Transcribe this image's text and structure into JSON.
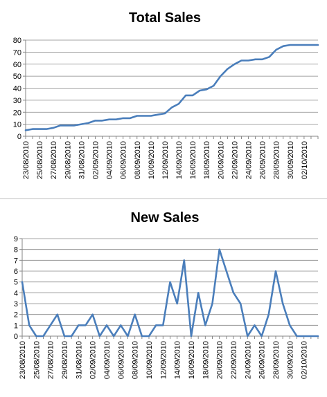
{
  "colors": {
    "line": "#4a7ebb",
    "axis": "#868686",
    "grid": "#868686"
  },
  "chart_data": [
    {
      "type": "line",
      "title": "Total Sales",
      "ylim": [
        0,
        80
      ],
      "yticks": [
        0,
        10,
        20,
        30,
        40,
        50,
        60,
        70,
        80
      ],
      "grid": true,
      "x_tick_labels": [
        "23/08/2010",
        "25/08/2010",
        "27/08/2010",
        "29/08/2010",
        "31/08/2010",
        "02/09/2010",
        "04/09/2010",
        "06/09/2010",
        "08/09/2010",
        "10/09/2010",
        "12/09/2010",
        "14/09/2010",
        "16/09/2010",
        "18/09/2010",
        "20/09/2010",
        "22/09/2010",
        "24/09/2010",
        "26/09/2010",
        "28/09/2010",
        "30/09/2010",
        "02/10/2010"
      ],
      "x": [
        "23/08/2010",
        "24/08/2010",
        "25/08/2010",
        "26/08/2010",
        "27/08/2010",
        "28/08/2010",
        "29/08/2010",
        "30/08/2010",
        "31/08/2010",
        "01/09/2010",
        "02/09/2010",
        "03/09/2010",
        "04/09/2010",
        "05/09/2010",
        "06/09/2010",
        "07/09/2010",
        "08/09/2010",
        "09/09/2010",
        "10/09/2010",
        "11/09/2010",
        "12/09/2010",
        "13/09/2010",
        "14/09/2010",
        "15/09/2010",
        "16/09/2010",
        "17/09/2010",
        "18/09/2010",
        "19/09/2010",
        "20/09/2010",
        "21/09/2010",
        "22/09/2010",
        "23/09/2010",
        "24/09/2010",
        "25/09/2010",
        "26/09/2010",
        "27/09/2010",
        "28/09/2010",
        "29/09/2010",
        "30/09/2010",
        "01/10/2010",
        "02/10/2010",
        "03/10/2010",
        "04/10/2010"
      ],
      "series": [
        {
          "values": [
            5,
            6,
            6,
            6,
            7,
            9,
            9,
            9,
            10,
            11,
            13,
            13,
            14,
            14,
            15,
            15,
            17,
            17,
            17,
            18,
            19,
            24,
            27,
            34,
            34,
            38,
            39,
            42,
            50,
            56,
            60,
            63,
            63,
            64,
            64,
            66,
            72,
            75,
            76,
            76,
            76,
            76,
            76
          ]
        }
      ]
    },
    {
      "type": "line",
      "title": "New Sales",
      "ylim": [
        0,
        9
      ],
      "yticks": [
        0,
        1,
        2,
        3,
        4,
        5,
        6,
        7,
        8,
        9
      ],
      "grid": true,
      "x_tick_labels": [
        "23/08/2010",
        "25/08/2010",
        "27/08/2010",
        "29/08/2010",
        "31/08/2010",
        "02/09/2010",
        "04/09/2010",
        "06/09/2010",
        "08/09/2010",
        "10/09/2010",
        "12/09/2010",
        "14/09/2010",
        "16/09/2010",
        "18/09/2010",
        "20/09/2010",
        "22/09/2010",
        "24/09/2010",
        "26/09/2010",
        "28/09/2010",
        "30/09/2010",
        "02/10/2010"
      ],
      "x": [
        "23/08/2010",
        "24/08/2010",
        "25/08/2010",
        "26/08/2010",
        "27/08/2010",
        "28/08/2010",
        "29/08/2010",
        "30/08/2010",
        "31/08/2010",
        "01/09/2010",
        "02/09/2010",
        "03/09/2010",
        "04/09/2010",
        "05/09/2010",
        "06/09/2010",
        "07/09/2010",
        "08/09/2010",
        "09/09/2010",
        "10/09/2010",
        "11/09/2010",
        "12/09/2010",
        "13/09/2010",
        "14/09/2010",
        "15/09/2010",
        "16/09/2010",
        "17/09/2010",
        "18/09/2010",
        "19/09/2010",
        "20/09/2010",
        "21/09/2010",
        "22/09/2010",
        "23/09/2010",
        "24/09/2010",
        "25/09/2010",
        "26/09/2010",
        "27/09/2010",
        "28/09/2010",
        "29/09/2010",
        "30/09/2010",
        "01/10/2010",
        "02/10/2010",
        "03/10/2010",
        "04/10/2010"
      ],
      "series": [
        {
          "values": [
            5,
            1,
            0,
            0,
            1,
            2,
            0,
            0,
            1,
            1,
            2,
            0,
            1,
            0,
            1,
            0,
            2,
            0,
            0,
            1,
            1,
            5,
            3,
            7,
            0,
            4,
            1,
            3,
            8,
            6,
            4,
            3,
            0,
            1,
            0,
            2,
            6,
            3,
            1,
            0,
            0,
            0,
            0
          ]
        }
      ]
    }
  ]
}
